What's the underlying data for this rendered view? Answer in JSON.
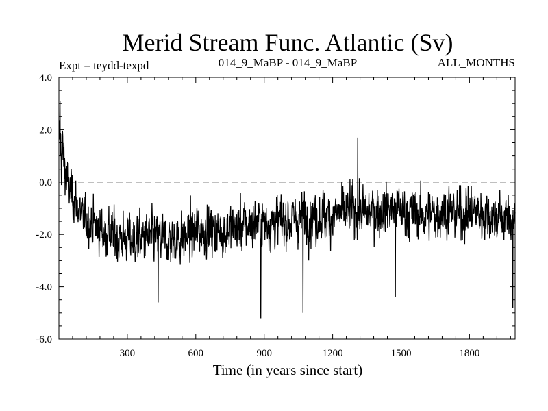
{
  "chart_data": {
    "type": "line",
    "title": "Merid Stream Func. Atlantic (Sv)",
    "subtitle_left": "Expt = teydd-texpd",
    "subtitle_center": "014_9_MaBP - 014_9_MaBP",
    "subtitle_right": "ALL_MONTHS",
    "xlabel": "Time (in years since start)",
    "ylabel": "",
    "xlim": [
      0,
      2000
    ],
    "ylim": [
      -6.0,
      4.0
    ],
    "x_ticks": [
      300,
      600,
      900,
      1200,
      1500,
      1800
    ],
    "x_tick_labels": [
      "300",
      "600",
      "900",
      "1200",
      "1500",
      "1800"
    ],
    "y_ticks": [
      4.0,
      2.0,
      0.0,
      -2.0,
      -4.0,
      -6.0
    ],
    "y_tick_labels": [
      "4.0",
      "2.0",
      "0.0",
      "-2.0",
      "-4.0",
      "-6.0"
    ],
    "zero_line": {
      "value": 0.0,
      "style": "dashed"
    },
    "series": [
      {
        "name": "Merid Stream Func. Atlantic",
        "sampling": "annual, noisy",
        "envelope": {
          "x": [
            0,
            10,
            20,
            40,
            60,
            100,
            150,
            200,
            250,
            300,
            350,
            400,
            450,
            500,
            550,
            600,
            650,
            700,
            750,
            800,
            850,
            900,
            950,
            1000,
            1050,
            1100,
            1150,
            1200,
            1250,
            1300,
            1350,
            1400,
            1450,
            1500,
            1550,
            1600,
            1650,
            1700,
            1750,
            1800,
            1850,
            1900,
            1950,
            2000
          ],
          "mean": [
            1.6,
            1.3,
            0.8,
            -0.1,
            -0.5,
            -1.3,
            -1.6,
            -1.9,
            -2.1,
            -2.2,
            -2.2,
            -2.1,
            -2.2,
            -2.2,
            -2.1,
            -1.9,
            -1.8,
            -1.9,
            -1.8,
            -1.7,
            -1.6,
            -1.6,
            -1.5,
            -1.5,
            -1.4,
            -1.4,
            -1.3,
            -1.3,
            -1.2,
            -1.1,
            -1.2,
            -1.1,
            -1.0,
            -1.1,
            -1.2,
            -1.3,
            -1.2,
            -1.1,
            -1.2,
            -1.1,
            -1.2,
            -1.3,
            -1.4,
            -1.4
          ],
          "spread": [
            0.9,
            1.0,
            0.9,
            0.7,
            0.6,
            0.6,
            0.6,
            0.7,
            0.7,
            0.7,
            0.7,
            0.7,
            0.7,
            0.7,
            0.7,
            0.7,
            0.7,
            0.7,
            0.7,
            0.7,
            0.7,
            0.7,
            0.7,
            0.7,
            0.7,
            0.7,
            0.7,
            0.7,
            0.7,
            0.7,
            0.7,
            0.7,
            0.7,
            0.7,
            0.7,
            0.7,
            0.7,
            0.7,
            0.7,
            0.7,
            0.7,
            0.7,
            0.7,
            0.7
          ]
        },
        "extremes": [
          {
            "x": 5,
            "y": 3.1
          },
          {
            "x": 885,
            "y": -5.2
          },
          {
            "x": 1070,
            "y": -5.0
          },
          {
            "x": 1310,
            "y": 1.7
          },
          {
            "x": 1475,
            "y": -4.4
          },
          {
            "x": 435,
            "y": -4.6
          },
          {
            "x": 1990,
            "y": -4.8
          }
        ],
        "color": "#000000"
      }
    ]
  }
}
